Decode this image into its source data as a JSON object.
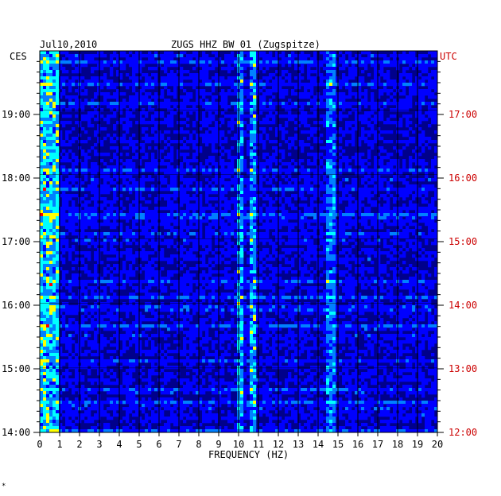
{
  "chart_data": {
    "type": "heatmap",
    "date": "Jul10,2010",
    "title": "ZUGS HHZ BW 01 (Zugspitze)",
    "left_axis_label": "CES",
    "right_axis_label": "UTC",
    "xlabel": "FREQUENCY (HZ)",
    "xlim": [
      0,
      20
    ],
    "x_ticks": [
      "0",
      "1",
      "2",
      "3",
      "4",
      "5",
      "6",
      "7",
      "8",
      "9",
      "10",
      "11",
      "12",
      "13",
      "14",
      "15",
      "16",
      "17",
      "18",
      "19",
      "20"
    ],
    "left_ticks": [
      "19:00",
      "18:00",
      "17:00",
      "16:00",
      "15:00",
      "14:00"
    ],
    "right_ticks": [
      "17:00",
      "16:00",
      "15:00",
      "14:00",
      "13:00",
      "12:00"
    ],
    "time_range_ces": [
      "14:00",
      "19:55"
    ],
    "colormap": [
      "#00008b",
      "#0000ff",
      "#0080ff",
      "#00ffff",
      "#ffff00",
      "#ff0000"
    ],
    "energy_bands_hz": [
      {
        "from": 0.0,
        "to": 1.0,
        "intensity": "high"
      },
      {
        "from": 9.9,
        "to": 10.2,
        "intensity": "high"
      },
      {
        "from": 10.5,
        "to": 10.9,
        "intensity": "high"
      },
      {
        "from": 14.4,
        "to": 14.9,
        "intensity": "medium"
      }
    ],
    "grid": true
  },
  "footer_mark": "*"
}
